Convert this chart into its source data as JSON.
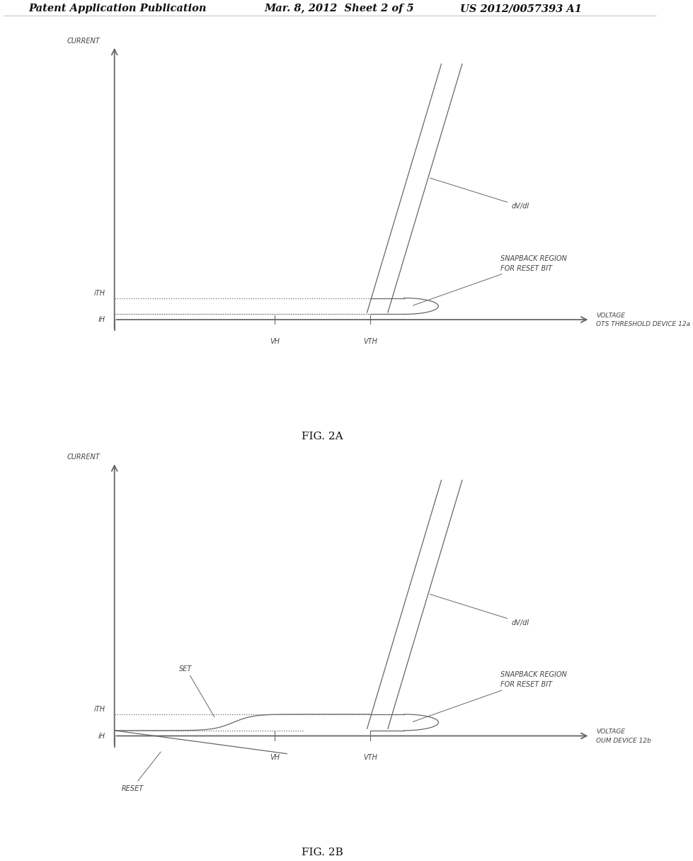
{
  "bg_color": "#ffffff",
  "text_color": "#444444",
  "line_color": "#666666",
  "header_left": "Patent Application Publication",
  "header_mid": "Mar. 8, 2012  Sheet 2 of 5",
  "header_right": "US 2012/0057393 A1",
  "fig2a_label": "FIG. 2A",
  "fig2b_label": "FIG. 2B",
  "fig2a_current_label": "CURRENT",
  "fig2a_voltage_label": "VOLTAGE\nOTS THRESHOLD DEVICE 12a",
  "fig2a_dvdi_label": "dV/dI",
  "fig2a_snapback_label": "SNAPBACK REGION\nFOR RESET BIT",
  "fig2a_ith_label": "iTH",
  "fig2a_ih_label": "iH",
  "fig2a_vh_label": "VH",
  "fig2a_vth_label": "VTH",
  "fig2b_current_label": "CURRENT",
  "fig2b_voltage_label": "VOLTAGE\nOUM DEVICE 12b",
  "fig2b_dvdi_label": "dV/dI",
  "fig2b_snapback_label": "SNAPBACK REGION\nFOR RESET BIT",
  "fig2b_ith_label": "iTH",
  "fig2b_ih_label": "iH",
  "fig2b_vh_label": "VH",
  "fig2b_vth_label": "VTH",
  "fig2b_set_label": "SET",
  "fig2b_reset_label": "RESET"
}
